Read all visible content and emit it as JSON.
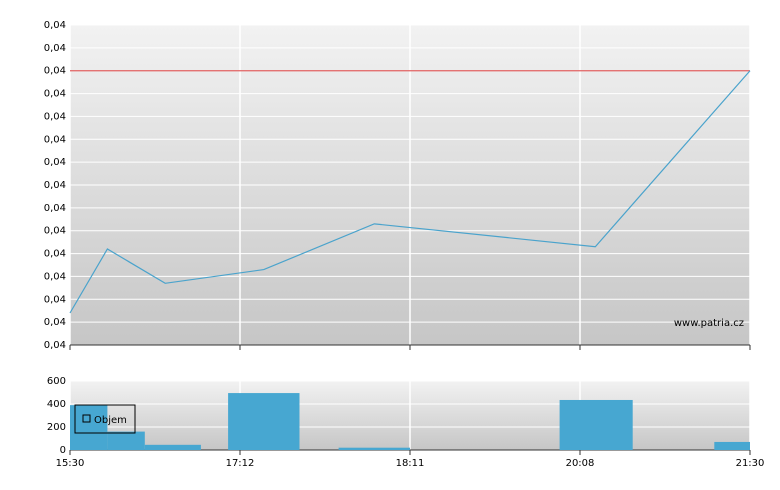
{
  "chart_data": [
    {
      "type": "line",
      "x": [
        0,
        0.22,
        0.56,
        1.14,
        1.79,
        3.09,
        4
      ],
      "values": [
        0.03914,
        0.03942,
        0.03927,
        0.03933,
        0.03953,
        0.03943,
        0.0402
      ],
      "color": "#4aa3cc",
      "xlim": [
        0,
        4
      ],
      "xticks": [
        0,
        1,
        2,
        3,
        4
      ],
      "ylim": [
        0.039,
        0.0404
      ],
      "yticks": [
        {
          "value": 0.039,
          "label": "0,04"
        },
        {
          "value": 0.0391,
          "label": "0,04"
        },
        {
          "value": 0.0392,
          "label": "0,04"
        },
        {
          "value": 0.0393,
          "label": "0,04"
        },
        {
          "value": 0.0394,
          "label": "0,04"
        },
        {
          "value": 0.0395,
          "label": "0,04"
        },
        {
          "value": 0.0396,
          "label": "0,04"
        },
        {
          "value": 0.0397,
          "label": "0,04"
        },
        {
          "value": 0.0398,
          "label": "0,04"
        },
        {
          "value": 0.0399,
          "label": "0,04"
        },
        {
          "value": 0.04,
          "label": "0,04"
        },
        {
          "value": 0.0401,
          "label": "0,04"
        },
        {
          "value": 0.0402,
          "label": "0,04"
        },
        {
          "value": 0.0403,
          "label": "0,04"
        },
        {
          "value": 0.0404,
          "label": "0,04"
        }
      ],
      "reference_line": {
        "value": 0.0402,
        "color": "#e06060"
      },
      "grid": true,
      "watermark": "www.patria.cz"
    },
    {
      "type": "bar",
      "series": [
        {
          "name": "Objem",
          "color": "#47a7d1",
          "x0": [
            0,
            0.22,
            0.44,
            0.93,
            1.58,
            2.88,
            3.79
          ],
          "x1": [
            0.22,
            0.44,
            0.77,
            1.35,
            2,
            3.31,
            4
          ],
          "values": [
            390,
            160,
            45,
            495,
            20,
            435,
            70
          ]
        }
      ],
      "xlim": [
        0,
        4
      ],
      "xticks": [
        {
          "value": 0,
          "label": "15:30"
        },
        {
          "value": 1,
          "label": "17:12"
        },
        {
          "value": 2,
          "label": "18:11"
        },
        {
          "value": 3,
          "label": "20:08"
        },
        {
          "value": 4,
          "label": "21:30"
        }
      ],
      "ylim": [
        0,
        600
      ],
      "yticks": [
        0,
        200,
        400,
        600
      ],
      "grid": true,
      "legend": "upper-left"
    }
  ]
}
